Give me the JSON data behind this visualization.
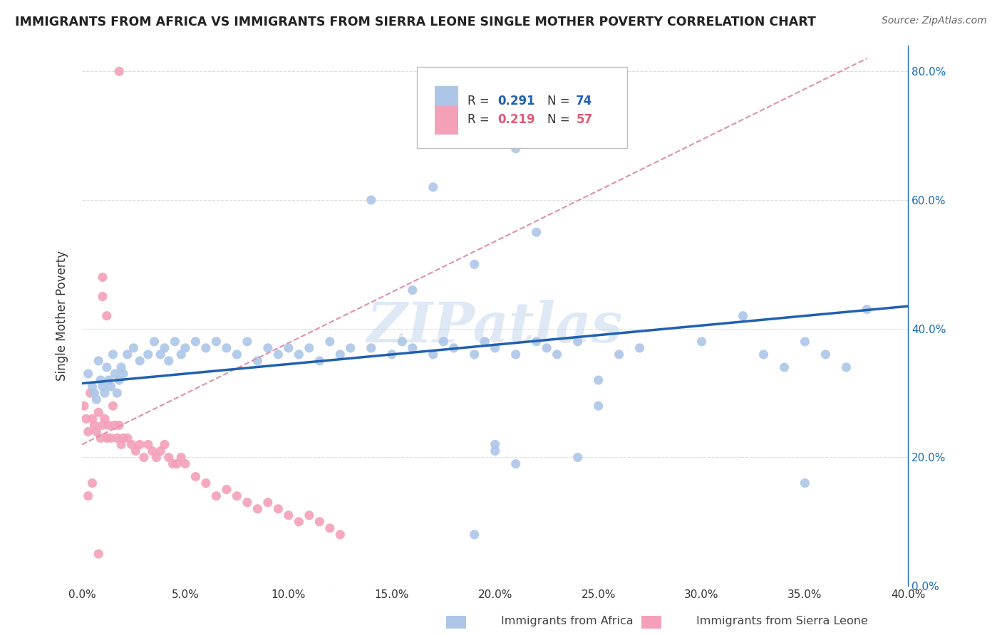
{
  "title": "IMMIGRANTS FROM AFRICA VS IMMIGRANTS FROM SIERRA LEONE SINGLE MOTHER POVERTY CORRELATION CHART",
  "source": "Source: ZipAtlas.com",
  "ylabel_label": "Single Mother Poverty",
  "legend_label1": "Immigrants from Africa",
  "legend_label2": "Immigrants from Sierra Leone",
  "r1": "0.291",
  "n1": "74",
  "r2": "0.219",
  "n2": "57",
  "color_africa": "#adc6e8",
  "color_sierra": "#f4a0b8",
  "color_africa_line": "#2060b0",
  "color_sierra_line_dashed": "#e090a8",
  "xlim": [
    0.0,
    0.4
  ],
  "ylim": [
    0.0,
    0.84
  ],
  "africa_x": [
    0.003,
    0.005,
    0.006,
    0.007,
    0.008,
    0.009,
    0.01,
    0.011,
    0.012,
    0.013,
    0.014,
    0.015,
    0.016,
    0.017,
    0.018,
    0.019,
    0.02,
    0.022,
    0.025,
    0.028,
    0.032,
    0.035,
    0.038,
    0.04,
    0.042,
    0.045,
    0.048,
    0.05,
    0.055,
    0.06,
    0.065,
    0.07,
    0.075,
    0.08,
    0.085,
    0.09,
    0.095,
    0.1,
    0.105,
    0.11,
    0.115,
    0.12,
    0.125,
    0.13,
    0.14,
    0.15,
    0.155,
    0.16,
    0.17,
    0.175,
    0.18,
    0.19,
    0.195,
    0.2,
    0.21,
    0.22,
    0.225,
    0.23,
    0.24,
    0.25,
    0.26,
    0.27,
    0.3,
    0.32,
    0.33,
    0.34,
    0.35,
    0.36,
    0.37,
    0.38,
    0.175,
    0.21,
    0.14,
    0.35
  ],
  "africa_y": [
    0.33,
    0.31,
    0.3,
    0.29,
    0.35,
    0.32,
    0.31,
    0.3,
    0.34,
    0.32,
    0.31,
    0.36,
    0.33,
    0.3,
    0.32,
    0.34,
    0.33,
    0.36,
    0.37,
    0.35,
    0.36,
    0.38,
    0.36,
    0.37,
    0.35,
    0.38,
    0.36,
    0.37,
    0.38,
    0.37,
    0.38,
    0.37,
    0.36,
    0.38,
    0.35,
    0.37,
    0.36,
    0.37,
    0.36,
    0.37,
    0.35,
    0.38,
    0.36,
    0.37,
    0.37,
    0.36,
    0.38,
    0.37,
    0.36,
    0.38,
    0.37,
    0.36,
    0.38,
    0.37,
    0.36,
    0.38,
    0.37,
    0.36,
    0.38,
    0.32,
    0.36,
    0.37,
    0.38,
    0.42,
    0.36,
    0.34,
    0.38,
    0.36,
    0.34,
    0.43,
    0.7,
    0.68,
    0.6,
    0.16
  ],
  "africa_y_extra": [
    0.55,
    0.5,
    0.46,
    0.62,
    0.28,
    0.22,
    0.2,
    0.19,
    0.21,
    0.08
  ],
  "africa_x_extra": [
    0.22,
    0.19,
    0.16,
    0.17,
    0.25,
    0.2,
    0.24,
    0.21,
    0.2,
    0.19
  ],
  "sierra_x": [
    0.001,
    0.002,
    0.003,
    0.004,
    0.005,
    0.006,
    0.007,
    0.008,
    0.009,
    0.01,
    0.011,
    0.012,
    0.013,
    0.014,
    0.015,
    0.016,
    0.017,
    0.018,
    0.019,
    0.02,
    0.022,
    0.024,
    0.026,
    0.028,
    0.03,
    0.032,
    0.034,
    0.036,
    0.038,
    0.04,
    0.042,
    0.044,
    0.046,
    0.048,
    0.05,
    0.055,
    0.06,
    0.065,
    0.07,
    0.075,
    0.08,
    0.085,
    0.09,
    0.095,
    0.1,
    0.105,
    0.11,
    0.115,
    0.12,
    0.125,
    0.018,
    0.01,
    0.01,
    0.012,
    0.005,
    0.003,
    0.008
  ],
  "sierra_y": [
    0.28,
    0.26,
    0.24,
    0.3,
    0.26,
    0.25,
    0.24,
    0.27,
    0.23,
    0.25,
    0.26,
    0.23,
    0.25,
    0.23,
    0.28,
    0.25,
    0.23,
    0.25,
    0.22,
    0.23,
    0.23,
    0.22,
    0.21,
    0.22,
    0.2,
    0.22,
    0.21,
    0.2,
    0.21,
    0.22,
    0.2,
    0.19,
    0.19,
    0.2,
    0.19,
    0.17,
    0.16,
    0.14,
    0.15,
    0.14,
    0.13,
    0.12,
    0.13,
    0.12,
    0.11,
    0.1,
    0.11,
    0.1,
    0.09,
    0.08,
    0.8,
    0.48,
    0.45,
    0.42,
    0.16,
    0.14,
    0.05
  ],
  "watermark": "ZIPatlas",
  "background_color": "#ffffff",
  "grid_color": "#dddddd",
  "title_color": "#222222",
  "source_color": "#666666",
  "tick_color": "#1a6bb5",
  "label_color": "#444444"
}
